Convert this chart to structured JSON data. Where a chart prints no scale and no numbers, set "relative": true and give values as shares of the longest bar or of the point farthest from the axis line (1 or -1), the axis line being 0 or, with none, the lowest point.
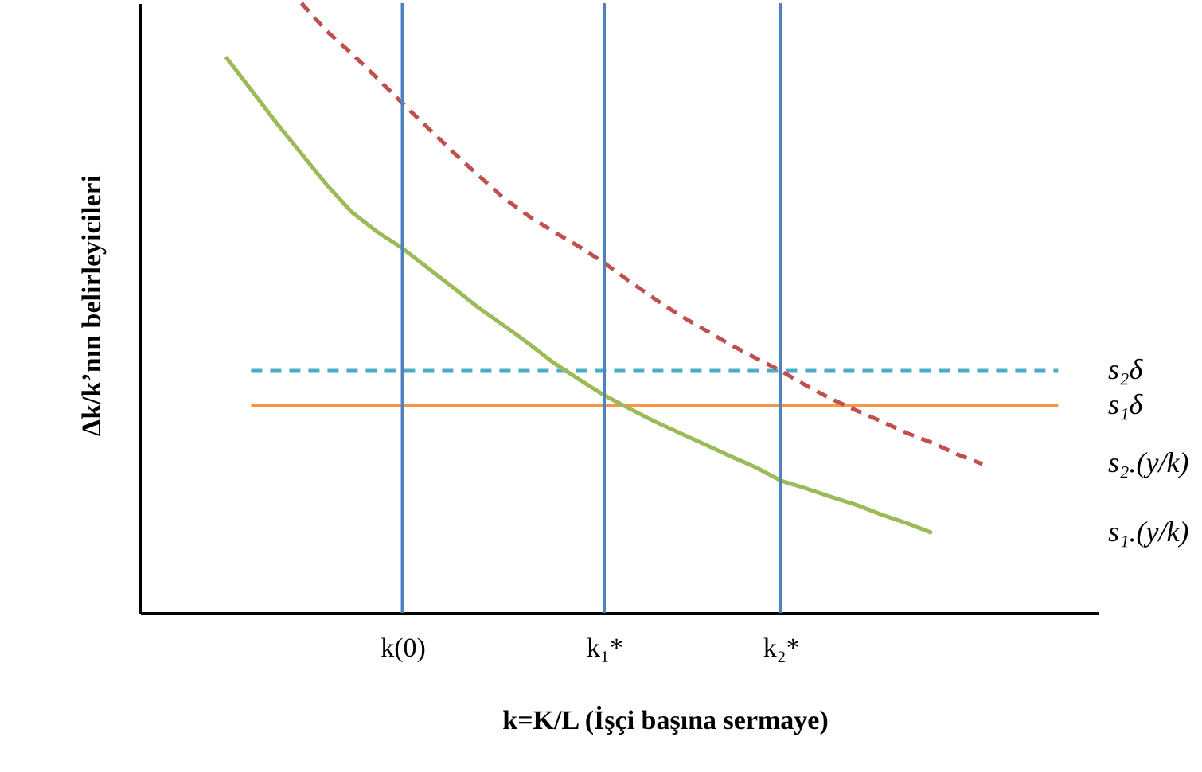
{
  "chart_data": {
    "type": "line",
    "relative": true,
    "xlabel": "k=K/L  (İşçi başına sermaye)",
    "ylabel": "Δk/k’nın belirleyicileri",
    "categories": [
      null,
      null,
      null,
      null,
      null,
      null,
      null,
      "k(0)",
      null,
      null,
      null,
      null,
      null,
      null,
      null,
      "k₁*",
      null,
      null,
      null,
      null,
      null,
      null,
      "k₂*",
      null,
      null,
      null,
      null,
      null,
      null,
      null,
      null,
      null,
      null,
      null
    ],
    "series": [
      {
        "name": "s₂δ",
        "color": "#4bacc6",
        "line_style": "dashed",
        "values": [
          null,
          0.397,
          0.397,
          0.397,
          0.397,
          0.397,
          0.397,
          0.397,
          0.397,
          0.397,
          0.397,
          0.397,
          0.397,
          0.397,
          0.397,
          0.397,
          0.397,
          0.397,
          0.397,
          0.397,
          0.397,
          0.397,
          0.397,
          0.397,
          0.397,
          0.397,
          0.397,
          0.397,
          0.397,
          0.397,
          0.397,
          0.397,
          0.397,
          0.397
        ]
      },
      {
        "name": "s₁δ",
        "color": "#f79646",
        "line_style": "solid",
        "values": [
          null,
          0.34,
          0.34,
          0.34,
          0.34,
          0.34,
          0.34,
          0.34,
          0.34,
          0.34,
          0.34,
          0.34,
          0.34,
          0.34,
          0.34,
          0.34,
          0.34,
          0.34,
          0.34,
          0.34,
          0.34,
          0.34,
          0.34,
          0.34,
          0.34,
          0.34,
          0.34,
          0.34,
          0.34,
          0.34,
          0.34,
          0.34,
          0.34,
          0.34
        ]
      },
      {
        "name": "s₂.(y/k)",
        "color": "#c0504d",
        "line_style": "dashed",
        "values": [
          null,
          null,
          null,
          1.0,
          0.954,
          0.917,
          0.877,
          0.836,
          0.796,
          0.756,
          0.718,
          0.681,
          0.651,
          0.625,
          0.601,
          0.574,
          0.544,
          0.515,
          0.488,
          0.464,
          0.44,
          0.418,
          0.397,
          0.373,
          0.351,
          0.332,
          0.314,
          0.295,
          0.279,
          0.26,
          0.244,
          null,
          null,
          null
        ]
      },
      {
        "name": "s₁.(y/k)",
        "color": "#9bbb59",
        "line_style": "solid",
        "values": [
          0.912,
          0.858,
          0.804,
          0.753,
          0.702,
          0.657,
          0.625,
          0.598,
          0.566,
          0.534,
          0.501,
          0.472,
          0.442,
          0.41,
          0.383,
          0.357,
          0.335,
          0.314,
          0.295,
          0.276,
          0.257,
          0.239,
          0.217,
          0.204,
          0.19,
          0.177,
          0.161,
          0.147,
          0.131,
          null,
          null,
          null,
          null,
          null
        ]
      }
    ],
    "ref_lines": [
      {
        "axis": "x",
        "value": "k(0)",
        "color": "#4f81bd"
      },
      {
        "axis": "x",
        "value": "k₁*",
        "color": "#4f81bd"
      },
      {
        "axis": "x",
        "value": "k₂*",
        "color": "#4f81bd"
      }
    ],
    "grid": false,
    "marker": "none"
  }
}
